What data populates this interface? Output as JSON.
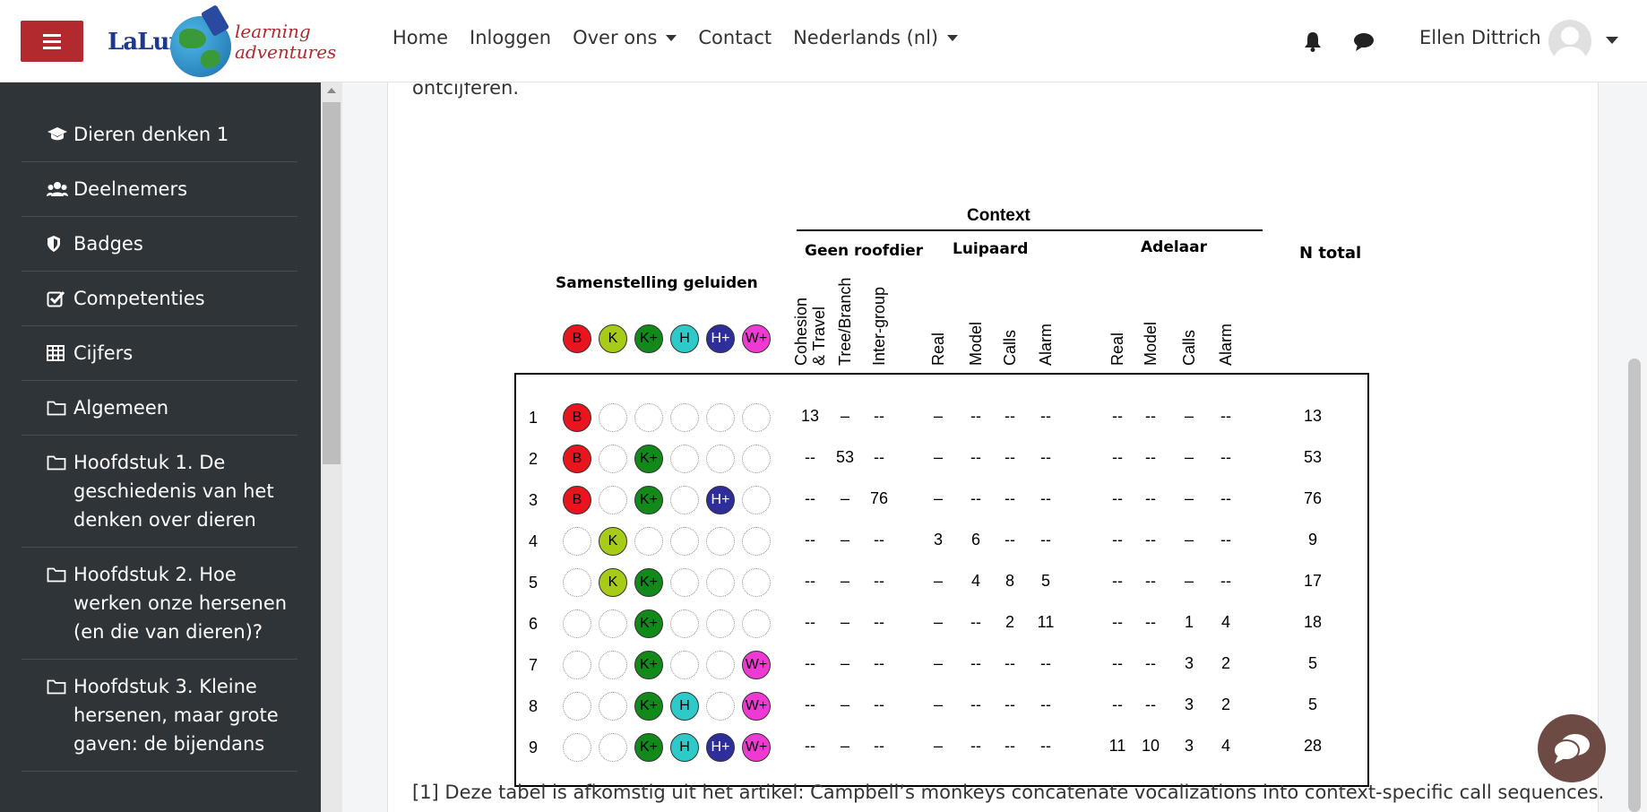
{
  "navbar": {
    "logo": {
      "brand": "LaLuna",
      "tagline_1": "learning",
      "tagline_2": "adventures"
    },
    "links": [
      {
        "label": "Home",
        "dropdown": false
      },
      {
        "label": "Inloggen",
        "dropdown": false
      },
      {
        "label": "Over ons",
        "dropdown": true
      },
      {
        "label": "Contact",
        "dropdown": false
      },
      {
        "label": "Nederlands (nl)",
        "dropdown": true
      }
    ],
    "user_name": "Ellen Dittrich"
  },
  "sidebar": {
    "items": [
      {
        "icon": "graduation-cap-icon",
        "label": "Dieren denken 1"
      },
      {
        "icon": "users-icon",
        "label": "Deelnemers"
      },
      {
        "icon": "shield-icon",
        "label": "Badges"
      },
      {
        "icon": "check-square-icon",
        "label": "Competenties"
      },
      {
        "icon": "table-icon",
        "label": "Cijfers"
      },
      {
        "icon": "folder-icon",
        "label": "Algemeen"
      },
      {
        "icon": "folder-icon",
        "label": "Hoofdstuk 1. De geschiedenis van het denken over dieren"
      },
      {
        "icon": "folder-icon",
        "label": "Hoofdstuk 2. Hoe werken onze hersenen (en die van dieren)?"
      },
      {
        "icon": "folder-icon",
        "label": "Hoofdstuk 3. Kleine hersenen, maar grote gaven: de bijendans"
      }
    ]
  },
  "content": {
    "clipped_text": "ontcijferen.",
    "footnote": "[1] Deze tabel is afkomstig uit het artikel: Campbell’s monkeys concatenate vocalizations into context-specific call sequences."
  },
  "table": {
    "context_title": "Context",
    "composition_title": "Samenstelling geluiden",
    "total_title": "N total",
    "groups": [
      "Geen roofdier",
      "Luipaard",
      "Adelaar"
    ],
    "subcolumns": [
      "Cohesion & Travel",
      "Tree/Branch",
      "Inter-group",
      "Real",
      "Model",
      "Calls",
      "Alarm",
      "Real",
      "Model",
      "Calls",
      "Alarm"
    ],
    "subcolumn_lines": [
      [
        "Cohesion",
        "& Travel"
      ],
      [
        "Tree/Branch"
      ],
      [
        "Inter-group"
      ],
      [
        "Real"
      ],
      [
        "Model"
      ],
      [
        "Calls"
      ],
      [
        "Alarm"
      ],
      [
        "Real"
      ],
      [
        "Model"
      ],
      [
        "Calls"
      ],
      [
        "Alarm"
      ]
    ],
    "calls": [
      {
        "label": "B",
        "color": "#e8141e"
      },
      {
        "label": "K",
        "color": "#a7cc18"
      },
      {
        "label": "K+",
        "color": "#128a1a"
      },
      {
        "label": "H",
        "color": "#2ec9c9"
      },
      {
        "label": "H+",
        "color": "#2e2e9a"
      },
      {
        "label": "W+",
        "color": "#ee3ad2"
      }
    ],
    "rows": [
      {
        "n": "1",
        "calls": [
          1,
          0,
          0,
          0,
          0,
          0
        ],
        "values": [
          "13",
          "–",
          "--",
          "–",
          "--",
          "--",
          "--",
          "--",
          "--",
          "–",
          "--"
        ],
        "total": "13"
      },
      {
        "n": "2",
        "calls": [
          1,
          0,
          1,
          0,
          0,
          0
        ],
        "values": [
          "--",
          "53",
          "--",
          "–",
          "--",
          "--",
          "--",
          "--",
          "--",
          "–",
          "--"
        ],
        "total": "53"
      },
      {
        "n": "3",
        "calls": [
          1,
          0,
          1,
          0,
          1,
          0
        ],
        "values": [
          "--",
          "–",
          "76",
          "–",
          "--",
          "--",
          "--",
          "--",
          "--",
          "–",
          "--"
        ],
        "total": "76"
      },
      {
        "n": "4",
        "calls": [
          0,
          1,
          0,
          0,
          0,
          0
        ],
        "values": [
          "--",
          "–",
          "--",
          "3",
          "6",
          "--",
          "--",
          "--",
          "--",
          "–",
          "--"
        ],
        "total": "9"
      },
      {
        "n": "5",
        "calls": [
          0,
          1,
          1,
          0,
          0,
          0
        ],
        "values": [
          "--",
          "–",
          "--",
          "–",
          "4",
          "8",
          "5",
          "--",
          "--",
          "–",
          "--"
        ],
        "total": "17"
      },
      {
        "n": "6",
        "calls": [
          0,
          0,
          1,
          0,
          0,
          0
        ],
        "values": [
          "--",
          "–",
          "--",
          "–",
          "--",
          "2",
          "11",
          "--",
          "--",
          "1",
          "4"
        ],
        "total": "18"
      },
      {
        "n": "7",
        "calls": [
          0,
          0,
          1,
          0,
          0,
          1
        ],
        "values": [
          "--",
          "–",
          "--",
          "–",
          "--",
          "--",
          "--",
          "--",
          "--",
          "3",
          "2"
        ],
        "total": "5"
      },
      {
        "n": "8",
        "calls": [
          0,
          0,
          1,
          1,
          0,
          1
        ],
        "values": [
          "--",
          "–",
          "--",
          "–",
          "--",
          "--",
          "--",
          "--",
          "--",
          "3",
          "2"
        ],
        "total": "5"
      },
      {
        "n": "9",
        "calls": [
          0,
          0,
          1,
          1,
          1,
          1
        ],
        "values": [
          "--",
          "–",
          "--",
          "–",
          "--",
          "--",
          "--",
          "11",
          "10",
          "3",
          "4"
        ],
        "total": "28"
      }
    ]
  },
  "colors": {
    "brand_red": "#b32a2e",
    "sidebar_bg": "#2f3439",
    "chat_button": "#6e4a44"
  }
}
